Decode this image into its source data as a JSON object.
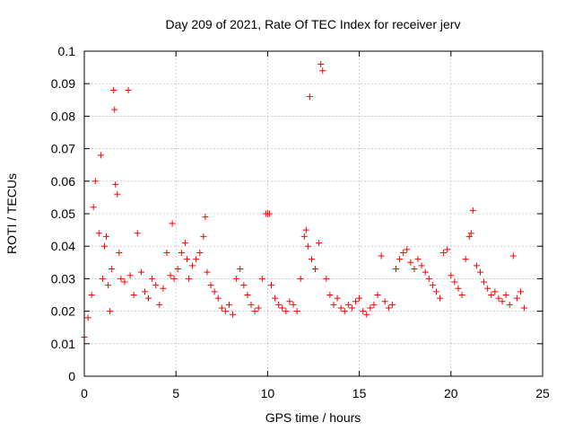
{
  "chart_data": {
    "type": "scatter",
    "title": "Day 209 of 2021, Rate Of TEC Index for receiver jerv",
    "xlabel": "GPS time / hours",
    "ylabel": "ROTI / TECUs",
    "xlim": [
      0,
      25
    ],
    "ylim": [
      0,
      0.1
    ],
    "xticks": [
      "0",
      "5",
      "10",
      "15",
      "20",
      "25"
    ],
    "yticks": [
      "0",
      "0.01",
      "0.02",
      "0.03",
      "0.04",
      "0.05",
      "0.06",
      "0.07",
      "0.08",
      "0.09",
      "0.1"
    ],
    "grid": true,
    "marker": "+",
    "color": "#ff0000",
    "series": [
      {
        "x": [
          0.0,
          0.2,
          0.4,
          0.5,
          0.6,
          0.8,
          0.9,
          1.0,
          1.1,
          1.2,
          1.3,
          1.4,
          1.5,
          1.6,
          1.65,
          1.7,
          1.8,
          1.9,
          2.0,
          2.2,
          2.4,
          2.5,
          2.7,
          2.9,
          3.1,
          3.3,
          3.5,
          3.7,
          3.9,
          4.1,
          4.3,
          4.5,
          4.7,
          4.8,
          4.9,
          5.1,
          5.3,
          5.5,
          5.6,
          5.7,
          5.9,
          6.1,
          6.3,
          6.5,
          6.6,
          6.7,
          6.9,
          7.1,
          7.3,
          7.5,
          7.7,
          7.9,
          8.1,
          8.3,
          8.5,
          8.7,
          8.9,
          9.1,
          9.3,
          9.5,
          9.7,
          9.9,
          10.0,
          10.1,
          10.2,
          10.4,
          10.6,
          10.8,
          11.0,
          11.2,
          11.4,
          11.6,
          11.8,
          12.0,
          12.1,
          12.2,
          12.3,
          12.4,
          12.6,
          12.8,
          12.9,
          13.0,
          13.2,
          13.4,
          13.6,
          13.8,
          14.0,
          14.2,
          14.4,
          14.6,
          14.8,
          15.0,
          15.2,
          15.4,
          15.6,
          15.8,
          16.0,
          16.2,
          16.4,
          16.6,
          16.8,
          17.0,
          17.2,
          17.4,
          17.6,
          17.8,
          18.0,
          18.2,
          18.4,
          18.6,
          18.8,
          19.0,
          19.2,
          19.4,
          19.6,
          19.8,
          20.0,
          20.2,
          20.4,
          20.6,
          20.8,
          21.0,
          21.1,
          21.2,
          21.4,
          21.6,
          21.8,
          22.0,
          22.2,
          22.4,
          22.6,
          22.8,
          23.0,
          23.2,
          23.4,
          23.6,
          23.8,
          24.0
        ],
        "y": [
          0.012,
          0.018,
          0.025,
          0.052,
          0.06,
          0.044,
          0.068,
          0.03,
          0.04,
          0.043,
          0.028,
          0.02,
          0.033,
          0.088,
          0.082,
          0.059,
          0.056,
          0.038,
          0.03,
          0.029,
          0.088,
          0.031,
          0.025,
          0.044,
          0.032,
          0.026,
          0.024,
          0.03,
          0.028,
          0.022,
          0.027,
          0.038,
          0.031,
          0.047,
          0.03,
          0.033,
          0.038,
          0.041,
          0.036,
          0.03,
          0.034,
          0.036,
          0.038,
          0.043,
          0.049,
          0.032,
          0.028,
          0.026,
          0.024,
          0.021,
          0.02,
          0.022,
          0.019,
          0.03,
          0.033,
          0.028,
          0.025,
          0.022,
          0.02,
          0.021,
          0.03,
          0.05,
          0.05,
          0.05,
          0.028,
          0.024,
          0.022,
          0.021,
          0.02,
          0.023,
          0.022,
          0.02,
          0.03,
          0.043,
          0.045,
          0.04,
          0.086,
          0.036,
          0.033,
          0.041,
          0.096,
          0.094,
          0.03,
          0.025,
          0.022,
          0.024,
          0.021,
          0.02,
          0.022,
          0.021,
          0.023,
          0.024,
          0.02,
          0.019,
          0.021,
          0.022,
          0.025,
          0.037,
          0.023,
          0.021,
          0.022,
          0.033,
          0.036,
          0.038,
          0.039,
          0.035,
          0.033,
          0.036,
          0.034,
          0.032,
          0.03,
          0.028,
          0.026,
          0.024,
          0.038,
          0.039,
          0.031,
          0.029,
          0.027,
          0.025,
          0.036,
          0.043,
          0.044,
          0.051,
          0.034,
          0.032,
          0.029,
          0.027,
          0.025,
          0.026,
          0.024,
          0.023,
          0.025,
          0.022,
          0.037,
          0.024,
          0.026,
          0.021
        ]
      }
    ]
  }
}
